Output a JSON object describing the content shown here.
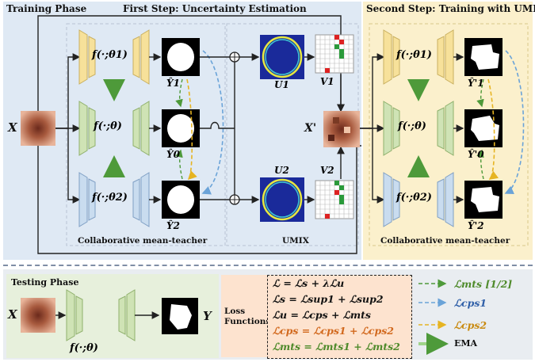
{
  "training_phase": {
    "title": "Training Phase",
    "step1_title": "First Step: Uncertainty Estimation",
    "step2_title": "Second Step: Training with UMIX",
    "input_label": "X",
    "mixed_label": "X'",
    "models": [
      "f(·;θ1)",
      "f(·;θ)",
      "f(·;θ2)"
    ],
    "predictions": [
      "Ŷ1",
      "Ŷ0",
      "Ŷ2"
    ],
    "uncertainty_maps": [
      "U1",
      "U2"
    ],
    "mix_masks": [
      "V1",
      "V2"
    ],
    "umix_predictions": [
      "Ŷ'1",
      "Ŷ'0",
      "Ŷ'2"
    ],
    "caption_left": "Collaborative mean-teacher",
    "caption_mid": "UMIX",
    "caption_right": "Collaborative mean-teacher"
  },
  "testing_phase": {
    "title": "Testing Phase",
    "input_label": "X",
    "model": "f(·;θ)",
    "output_label": "Y"
  },
  "loss_functions": {
    "label": "Loss Functions",
    "equations": [
      "ℒ = ℒs + λℒu",
      "ℒs = ℒsup1 + ℒsup2",
      "ℒu = ℒcps + ℒmts",
      "ℒcps = ℒcps1 + ℒcps2",
      "ℒmts = ℒmts1 + ℒmts2"
    ]
  },
  "legend": {
    "items": [
      {
        "label": "ℒmts [1/2]",
        "color": "#4e9a3a",
        "style": "dashed"
      },
      {
        "label": "ℒcps1",
        "color": "#6aa3d8",
        "style": "dashed"
      },
      {
        "label": "ℒcps2",
        "color": "#e6b422",
        "style": "dashed"
      },
      {
        "label": "EMA",
        "color": "#7cc46a",
        "style": "arrow"
      }
    ]
  },
  "colors": {
    "training_bg": "#dfe9f4",
    "umix_bg": "#fbf0cc",
    "model_top": "#f7e19a",
    "model_mid": "#cfe3b5",
    "model_bot": "#c9dcef",
    "loss_bg": "#fde3cf"
  }
}
